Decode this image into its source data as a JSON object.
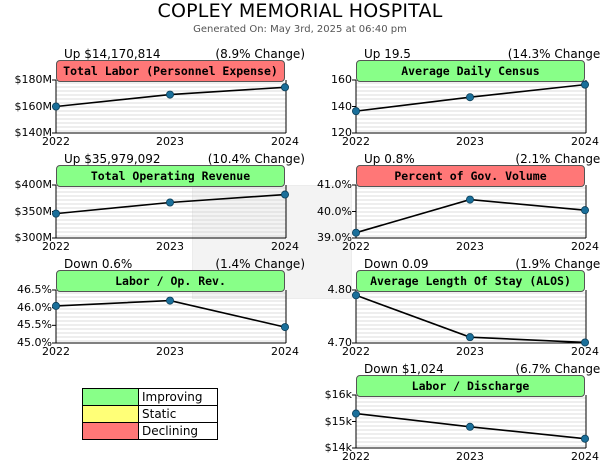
{
  "header": {
    "title": "COPLEY MEMORIAL HOSPITAL",
    "subtitle": "Generated On: May 3rd, 2025 at 06:40 pm"
  },
  "colors": {
    "improving": "#88ff88",
    "static": "#ffff77",
    "declining": "#ff7777",
    "marker": "#1a6f9a",
    "line": "#000000",
    "grid": "#bdbdbd"
  },
  "legend": [
    {
      "label": "Improving",
      "status": "improving"
    },
    {
      "label": "Static",
      "status": "static"
    },
    {
      "label": "Declining",
      "status": "declining"
    }
  ],
  "chart_data": [
    {
      "type": "line",
      "title": "Total Labor (Personnel Expense)",
      "status": "declining",
      "change_left": "Up $14,170,814",
      "change_right": "(8.9% Change)",
      "x": [
        "2022",
        "2023",
        "2024"
      ],
      "values": [
        160,
        169,
        174.5
      ],
      "ylim": [
        140,
        180
      ],
      "yticks": [
        140,
        160,
        180
      ],
      "ytick_labels": [
        "$140M",
        "$160M",
        "$180M"
      ]
    },
    {
      "type": "line",
      "title": "Average Daily Census",
      "status": "improving",
      "change_left": "Up 19.5",
      "change_right": "(14.3% Change)",
      "x": [
        "2022",
        "2023",
        "2024"
      ],
      "values": [
        136.5,
        147,
        156.5
      ],
      "ylim": [
        120,
        160
      ],
      "yticks": [
        120,
        140,
        160
      ],
      "ytick_labels": [
        "120",
        "140",
        "160"
      ]
    },
    {
      "type": "line",
      "title": "Total Operating Revenue",
      "status": "improving",
      "change_left": "Up $35,979,092",
      "change_right": "(10.4% Change)",
      "x": [
        "2022",
        "2023",
        "2024"
      ],
      "values": [
        346,
        367,
        382
      ],
      "ylim": [
        300,
        400
      ],
      "yticks": [
        300,
        350,
        400
      ],
      "ytick_labels": [
        "$300M",
        "$350M",
        "$400M"
      ]
    },
    {
      "type": "line",
      "title": "Percent of Gov. Volume",
      "status": "declining",
      "change_left": "Up 0.8%",
      "change_right": "(2.1% Change)",
      "x": [
        "2022",
        "2023",
        "2024"
      ],
      "values": [
        39.2,
        40.45,
        40.05
      ],
      "ylim": [
        39.0,
        41.0
      ],
      "yticks": [
        39.0,
        40.0,
        41.0
      ],
      "ytick_labels": [
        "39.0%",
        "40.0%",
        "41.0%"
      ]
    },
    {
      "type": "line",
      "title": "Labor / Op. Rev.",
      "status": "improving",
      "change_left": "Down 0.6%",
      "change_right": "(1.4% Change)",
      "x": [
        "2022",
        "2023",
        "2024"
      ],
      "values": [
        46.05,
        46.2,
        45.45
      ],
      "ylim": [
        45.0,
        46.5
      ],
      "yticks": [
        45.0,
        45.5,
        46.0,
        46.5
      ],
      "ytick_labels": [
        "45.0%",
        "45.5%",
        "46.0%",
        "46.5%"
      ]
    },
    {
      "type": "line",
      "title": "Average Length Of Stay (ALOS)",
      "status": "improving",
      "change_left": "Down 0.09",
      "change_right": "(1.9% Change)",
      "x": [
        "2022",
        "2023",
        "2024"
      ],
      "values": [
        4.79,
        4.711,
        4.701
      ],
      "ylim": [
        4.7,
        4.8
      ],
      "yticks": [
        4.7,
        4.8
      ],
      "ytick_labels": [
        "4.70",
        "4.80"
      ]
    },
    {
      "type": "line",
      "title": "Labor / Discharge",
      "status": "improving",
      "change_left": "Down $1,024",
      "change_right": "(6.7% Change)",
      "x": [
        "2022",
        "2023",
        "2024"
      ],
      "values": [
        15.3,
        14.8,
        14.35
      ],
      "ylim": [
        14,
        16
      ],
      "yticks": [
        14,
        15,
        16
      ],
      "ytick_labels": [
        "$14k",
        "$15k",
        "$16k"
      ]
    }
  ]
}
